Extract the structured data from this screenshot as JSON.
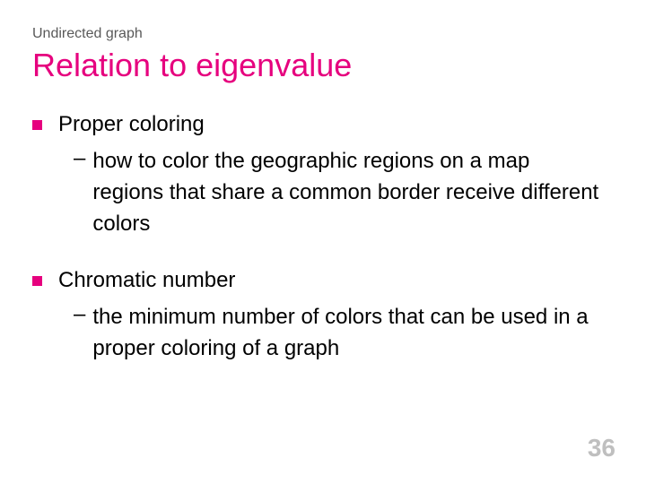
{
  "slide": {
    "supertitle": "Undirected graph",
    "title": "Relation to eigenvalue",
    "page_number": "36",
    "colors": {
      "accent": "#e6007e",
      "supertitle": "#595959",
      "body_text": "#000000",
      "page_number": "#bfbfbf",
      "background": "#ffffff"
    },
    "typography": {
      "supertitle_fontsize": 16,
      "title_fontsize": 36,
      "body_fontsize": 24,
      "pagenum_fontsize": 28,
      "font_family": "Verdana"
    },
    "items": [
      {
        "label": "Proper coloring",
        "sub": "how to color the geographic regions on a map regions that share a common border receive different colors"
      },
      {
        "label": "Chromatic number",
        "sub": "the minimum number of colors that can be used in a proper coloring of a graph"
      }
    ]
  }
}
